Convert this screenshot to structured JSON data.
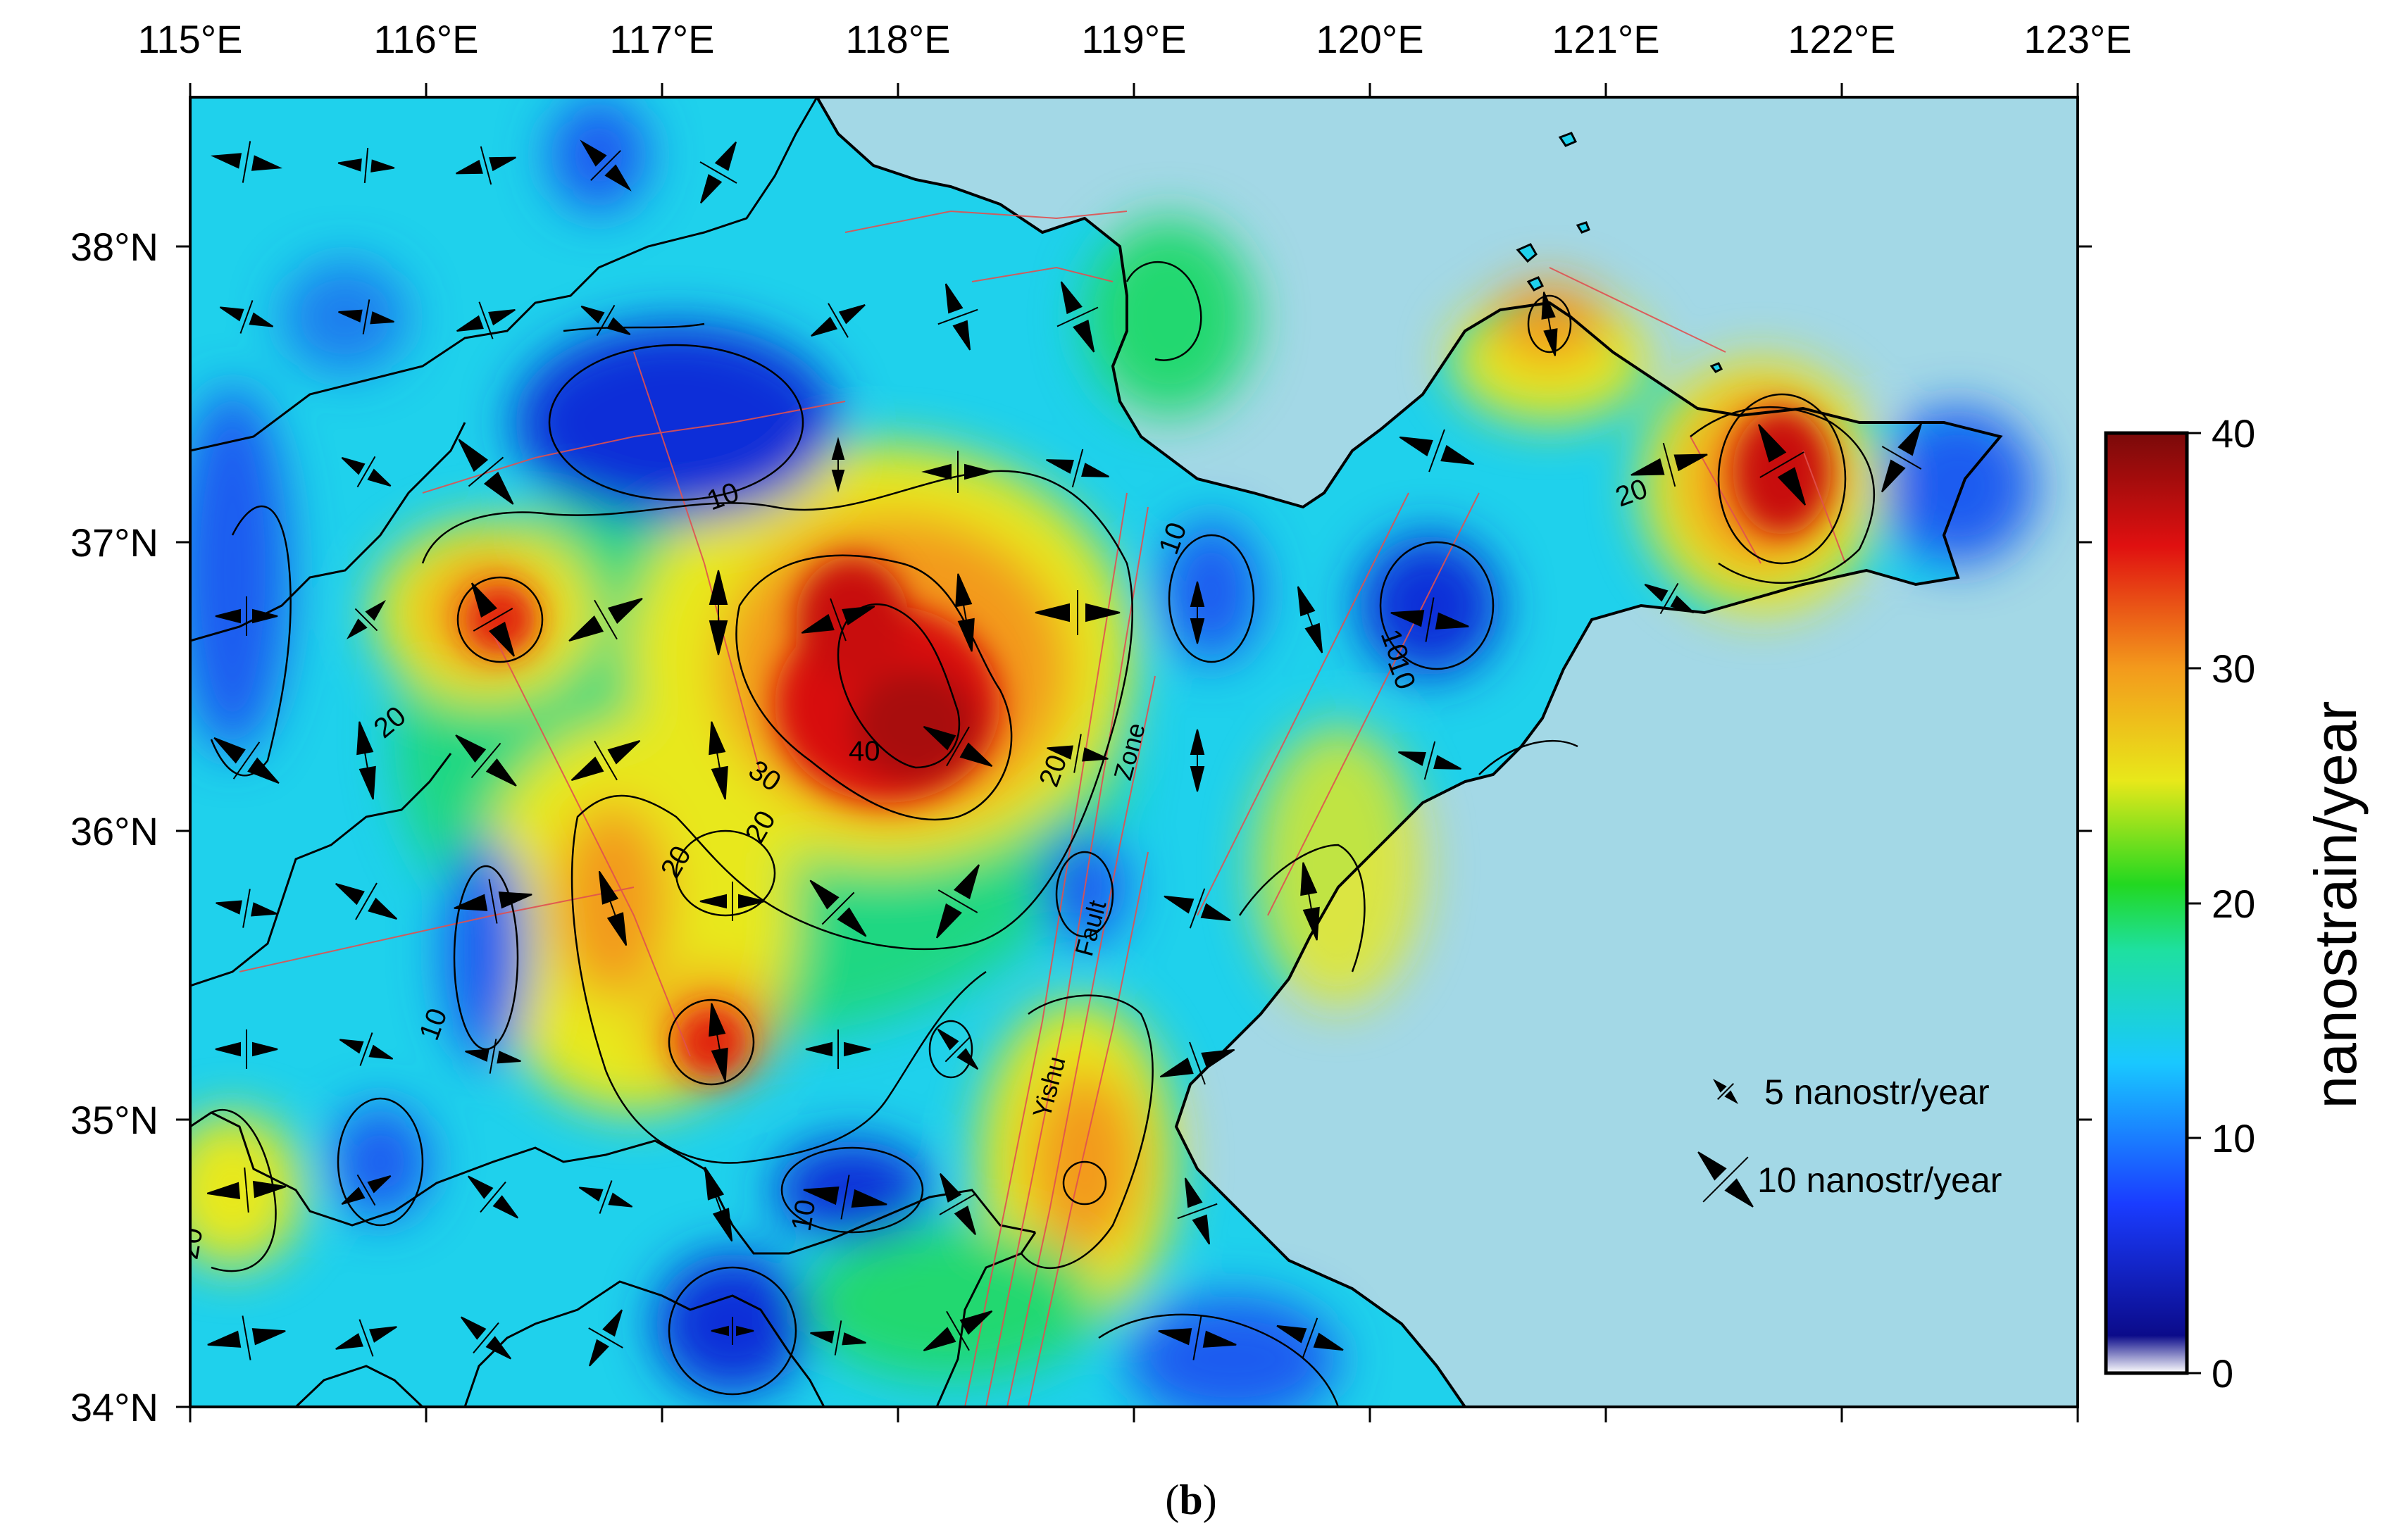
{
  "colors": {
    "sea": "#a3d8e6",
    "land_base": "#1fd1ec",
    "low": "#0a2fd8",
    "mid": "#19e07a",
    "high": "#d81010",
    "yellow": "#e8e81a",
    "orange": "#f39a1c",
    "fault": "#e05050"
  },
  "axes": {
    "lon_labels": [
      "115°E",
      "116°E",
      "117°E",
      "118°E",
      "119°E",
      "120°E",
      "121°E",
      "122°E",
      "123°E"
    ],
    "lat_labels": [
      "38°N",
      "37°N",
      "36°N",
      "35°N",
      "34°N"
    ]
  },
  "contour_labels": [
    "10",
    "20",
    "30",
    "40",
    "20",
    "20",
    "10",
    "20",
    "10",
    "10",
    "20",
    "10",
    "10",
    "20"
  ],
  "fault_labels": [
    "Zone",
    "Fault",
    "Yishu"
  ],
  "legend": {
    "items": [
      {
        "label": "5 nanostr/year"
      },
      {
        "label": "10 nanostr/year"
      }
    ]
  },
  "colorbar": {
    "title": "nanostrain/year",
    "ticks": [
      "40",
      "30",
      "20",
      "10",
      "0"
    ],
    "range": [
      0,
      40
    ],
    "stops": [
      "#ffffff",
      "#0b0b8a",
      "#1a3cff",
      "#19c8ff",
      "#1ee0a0",
      "#22d820",
      "#e8e81a",
      "#f39a1c",
      "#e01010",
      "#7a0a0a"
    ]
  },
  "caption": {
    "open": "(",
    "letter": "b",
    "close": ")"
  }
}
